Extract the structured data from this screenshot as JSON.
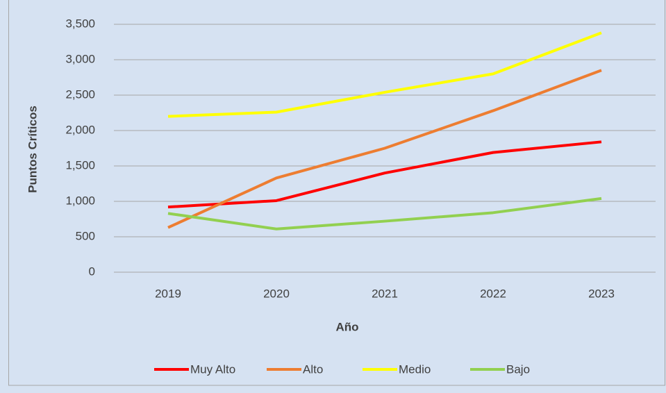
{
  "chart_data": {
    "type": "line",
    "x_label": "Año",
    "y_label": "Puntos Críticos",
    "categories": [
      "2019",
      "2020",
      "2021",
      "2022",
      "2023"
    ],
    "series": [
      {
        "name": "Muy Alto",
        "color": "#ff0000",
        "values": [
          920,
          1010,
          1400,
          1690,
          1840
        ]
      },
      {
        "name": "Alto",
        "color": "#ed7d31",
        "values": [
          630,
          1330,
          1750,
          2280,
          2850
        ]
      },
      {
        "name": "Medio",
        "color": "#ffff00",
        "values": [
          2200,
          2260,
          2540,
          2800,
          3380
        ]
      },
      {
        "name": "Bajo",
        "color": "#92d050",
        "values": [
          830,
          610,
          720,
          840,
          1040
        ]
      }
    ],
    "ylim": [
      0,
      3500
    ],
    "yticks": [
      0,
      500,
      {
        "value": 1000,
        "label": "1,000"
      },
      {
        "value": 1500,
        "label": "1,500"
      },
      {
        "value": 2000,
        "label": "2,000"
      },
      {
        "value": 2500,
        "label": "2,500"
      },
      {
        "value": 3000,
        "label": "3,000"
      },
      {
        "value": 3500,
        "label": "3,500"
      }
    ],
    "grid": true,
    "legend": "bottom"
  }
}
